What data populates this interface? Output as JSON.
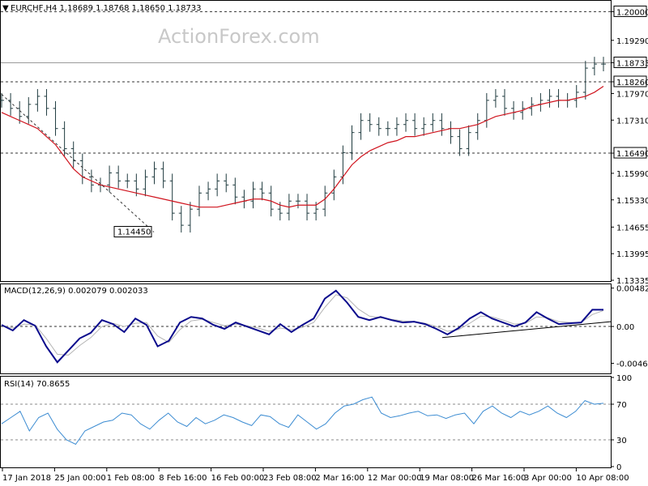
{
  "header": {
    "arrow": "▼",
    "price_title": "EURCHF,H4  1.18689 1.18768 1.18650 1.18733",
    "macd_title": "MACD(12,26,9) 0.002079 0.002033",
    "rsi_title": "RSI(14) 70.8655"
  },
  "watermark": "ActionForex.com",
  "colors": {
    "bars": "#1e3a3e",
    "ma": "#d0141e",
    "macd": "#0a0a8c",
    "signal": "#b4b4b4",
    "rsi": "#3c8cd2",
    "grid_dash": "#333333",
    "frame": "#000000"
  },
  "chart_data": [
    {
      "type": "ohlc",
      "symbol": "EURCHF",
      "timeframe": "H4",
      "ohlc_last": {
        "open": 1.18689,
        "high": 1.18768,
        "low": 1.1865,
        "close": 1.18733
      },
      "y_ticks": [
        "1.20000",
        "1.19290",
        "1.18733",
        "1.18260",
        "1.17970",
        "1.17310",
        "1.16490",
        "1.15990",
        "1.15330",
        "1.14655",
        "1.13995",
        "1.13335"
      ],
      "ylim": [
        1.13335,
        1.2025
      ],
      "levels": [
        {
          "label": "1.20000",
          "value": 1.2,
          "style": "dashed"
        },
        {
          "label": "1.18733",
          "value": 1.18733,
          "style": "solid"
        },
        {
          "label": "1.18260",
          "value": 1.1826,
          "style": "dashed"
        },
        {
          "label": "1.16490",
          "value": 1.1649,
          "style": "dashed"
        }
      ],
      "annotations": [
        {
          "label": "1.14450",
          "value": 1.1445
        }
      ],
      "series": [
        {
          "values": [
            1.178,
            1.176,
            1.174,
            1.177,
            1.179,
            1.176,
            1.171,
            1.166,
            1.163,
            1.159,
            1.157,
            1.157,
            1.16,
            1.158,
            1.158,
            1.156,
            1.159,
            1.161,
            1.158,
            1.15,
            1.147,
            1.151,
            1.155,
            1.156,
            1.158,
            1.157,
            1.154,
            1.153,
            1.156,
            1.155,
            1.151,
            1.15,
            1.153,
            1.153,
            1.15,
            1.151,
            1.155,
            1.159,
            1.165,
            1.17,
            1.173,
            1.172,
            1.171,
            1.171,
            1.172,
            1.173,
            1.171,
            1.172,
            1.173,
            1.171,
            1.169,
            1.166,
            1.17,
            1.173,
            1.178,
            1.179,
            1.176,
            1.175,
            1.176,
            1.177,
            1.178,
            1.179,
            1.178,
            1.178,
            1.18,
            1.186,
            1.187,
            1.187
          ]
        },
        {
          "name": "",
          "values": [
            1.175,
            1.174,
            1.173,
            1.172,
            1.171,
            1.169,
            1.167,
            1.164,
            1.161,
            1.159,
            1.158,
            1.157,
            1.1565,
            1.156,
            1.1555,
            1.155,
            1.1545,
            1.154,
            1.1535,
            1.153,
            1.1525,
            1.152,
            1.1515,
            1.1515,
            1.1515,
            1.152,
            1.1525,
            1.153,
            1.1535,
            1.1535,
            1.153,
            1.152,
            1.1515,
            1.152,
            1.152,
            1.152,
            1.1535,
            1.156,
            1.159,
            1.162,
            1.164,
            1.1655,
            1.1665,
            1.1675,
            1.168,
            1.169,
            1.169,
            1.1695,
            1.17,
            1.1705,
            1.171,
            1.171,
            1.1715,
            1.172,
            1.173,
            1.174,
            1.1745,
            1.175,
            1.1755,
            1.1765,
            1.177,
            1.1775,
            1.178,
            1.178,
            1.1785,
            1.179,
            1.18,
            1.1815
          ]
        }
      ]
    },
    {
      "type": "line",
      "ylim": [
        -0.0058,
        0.0052
      ],
      "y_ticks": [
        "0.004827",
        "0.00",
        "-0.004632"
      ],
      "reference_level": 0.0,
      "annotations": [
        "trendline"
      ],
      "series": [
        {
          "values": [
            0.0002,
            -0.0005,
            0.0008,
            0.0001,
            -0.0025,
            -0.0045,
            -0.003,
            -0.0015,
            -0.0008,
            0.0008,
            0.0003,
            -0.0007,
            0.001,
            0.0002,
            -0.0025,
            -0.0018,
            0.0005,
            0.0012,
            0.001,
            0.0002,
            -0.0003,
            0.0005,
            0.0,
            -0.0005,
            -0.001,
            0.0003,
            -0.0007,
            0.0002,
            0.001,
            0.0035,
            0.0045,
            0.003,
            0.0012,
            0.0008,
            0.0012,
            0.0008,
            0.0005,
            0.0006,
            0.0003,
            -0.0003,
            -0.001,
            -0.0002,
            0.001,
            0.0018,
            0.001,
            0.0005,
            0.0,
            0.0005,
            0.0018,
            0.001,
            0.0003,
            0.0004,
            0.0005,
            0.0021,
            0.0021
          ]
        },
        {
          "values": [
            0.0001,
            -0.0002,
            0.0003,
            0.0002,
            -0.0015,
            -0.0035,
            -0.0036,
            -0.0024,
            -0.0014,
            0.0,
            0.0004,
            0.0,
            0.0004,
            0.0005,
            -0.0012,
            -0.002,
            -0.0004,
            0.0007,
            0.0009,
            0.0005,
            0.0001,
            0.0003,
            0.0001,
            -0.0002,
            -0.0006,
            -0.0002,
            -0.0004,
            -0.0001,
            0.0005,
            0.0024,
            0.004,
            0.0036,
            0.0022,
            0.0013,
            0.0011,
            0.0009,
            0.0007,
            0.0006,
            0.0004,
            0.0,
            -0.0006,
            -0.0004,
            0.0004,
            0.0013,
            0.0012,
            0.0008,
            0.0003,
            0.0004,
            0.0012,
            0.0011,
            0.0006,
            0.0005,
            0.0005,
            0.0015,
            0.002
          ]
        }
      ]
    },
    {
      "type": "line",
      "ylim": [
        0,
        100
      ],
      "y_ticks": [
        "100",
        "70",
        "30",
        "0"
      ],
      "reference_levels": [
        70,
        30
      ],
      "series": [
        {
          "values": [
            48,
            55,
            62,
            40,
            55,
            60,
            42,
            30,
            25,
            40,
            45,
            50,
            52,
            60,
            58,
            48,
            42,
            52,
            60,
            50,
            45,
            55,
            48,
            52,
            58,
            55,
            50,
            46,
            58,
            56,
            48,
            44,
            58,
            50,
            42,
            48,
            60,
            68,
            70,
            75,
            78,
            60,
            55,
            57,
            60,
            62,
            57,
            58,
            54,
            58,
            60,
            48,
            62,
            68,
            60,
            55,
            62,
            58,
            62,
            68,
            60,
            55,
            62,
            74,
            70,
            71
          ]
        }
      ]
    }
  ],
  "x_axis": {
    "ticks": [
      "17 Jan 2018",
      "25 Jan 00:00",
      "1 Feb 08:00",
      "8 Feb 16:00",
      "16 Feb 00:00",
      "23 Feb 08:00",
      "2 Mar 16:00",
      "12 Mar 00:00",
      "19 Mar 08:00",
      "26 Mar 16:00",
      "3 Apr 00:00",
      "10 Apr 08:00"
    ]
  }
}
